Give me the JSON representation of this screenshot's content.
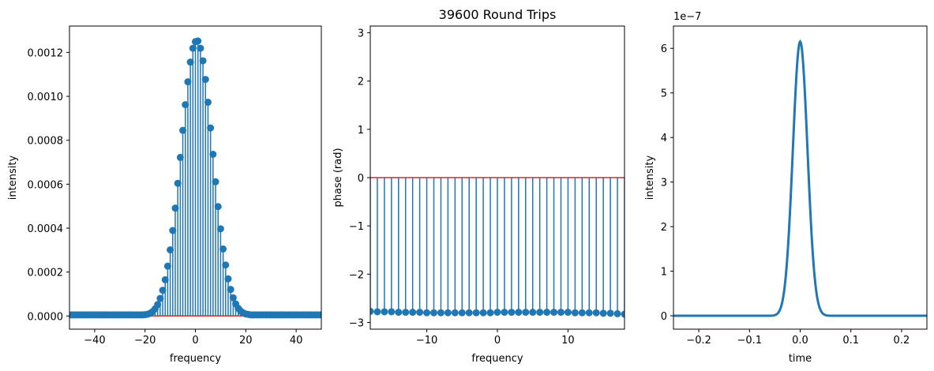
{
  "figure": {
    "suptitle": "39600 Round Trips"
  },
  "colors": {
    "series": "#1f77b4",
    "baseline": "#d62728",
    "axes": "#000000"
  },
  "chart_data": [
    {
      "type": "stem",
      "xlabel": "frequency",
      "ylabel": "intensity",
      "xlim": [
        -50,
        50
      ],
      "ylim": [
        -6e-05,
        0.00132
      ],
      "xticks": [
        -40,
        -20,
        0,
        20,
        40
      ],
      "xtick_labels": [
        "−40",
        "−20",
        "0",
        "20",
        "40"
      ],
      "yticks": [
        0,
        0.0002,
        0.0004,
        0.0006,
        0.0008,
        0.001,
        0.0012
      ],
      "ytick_labels": [
        "0.0000",
        "0.0002",
        "0.0004",
        "0.0006",
        "0.0008",
        "0.0010",
        "0.0012"
      ],
      "baseline": 0,
      "x": [
        -50,
        -49,
        -48,
        -47,
        -46,
        -45,
        -44,
        -43,
        -42,
        -41,
        -40,
        -39,
        -38,
        -37,
        -36,
        -35,
        -34,
        -33,
        -32,
        -31,
        -30,
        -29,
        -28,
        -27,
        -26,
        -25,
        -24,
        -23,
        -22,
        -21,
        -20,
        -19,
        -18,
        -17,
        -16,
        -15,
        -14,
        -13,
        -12,
        -11,
        -10,
        -9,
        -8,
        -7,
        -6,
        -5,
        -4,
        -3,
        -2,
        -1,
        0,
        1,
        2,
        3,
        4,
        5,
        6,
        7,
        8,
        9,
        10,
        11,
        12,
        13,
        14,
        15,
        16,
        17,
        18,
        19,
        20,
        21,
        22,
        23,
        24,
        25,
        26,
        27,
        28,
        29,
        30,
        31,
        32,
        33,
        34,
        35,
        36,
        37,
        38,
        39,
        40,
        41,
        42,
        43,
        44,
        45,
        46,
        47,
        48,
        49,
        50
      ],
      "y": [
        5e-06,
        5e-06,
        5e-06,
        5e-06,
        5e-06,
        5e-06,
        5e-06,
        5e-06,
        5e-06,
        5e-06,
        5e-06,
        5e-06,
        5e-06,
        5e-06,
        5e-06,
        5e-06,
        5e-06,
        5e-06,
        5e-06,
        5e-06,
        5e-06,
        5e-06,
        5e-06,
        5e-06,
        5e-06,
        5e-06,
        5e-06,
        5e-06,
        5e-06,
        5e-06,
        6e-06,
        8e-06,
        1.2e-05,
        2e-05,
        3.3e-05,
        5.2e-05,
        8e-05,
        0.000117,
        0.000165,
        0.000227,
        0.000301,
        0.000389,
        0.000491,
        0.000604,
        0.000722,
        0.000845,
        0.000962,
        0.001066,
        0.001156,
        0.001219,
        0.001249,
        0.001252,
        0.001219,
        0.001162,
        0.001077,
        0.000973,
        0.000856,
        0.000736,
        0.000611,
        0.000498,
        0.000397,
        0.000305,
        0.000232,
        0.000169,
        0.000121,
        8.3e-05,
        5.5e-05,
        3.5e-05,
        2.2e-05,
        1.4e-05,
        9e-06,
        7e-06,
        5e-06,
        5e-06,
        5e-06,
        5e-06,
        5e-06,
        5e-06,
        5e-06,
        5e-06,
        5e-06,
        5e-06,
        5e-06,
        5e-06,
        5e-06,
        5e-06,
        5e-06,
        5e-06,
        5e-06,
        5e-06,
        5e-06,
        5e-06,
        5e-06,
        5e-06,
        5e-06,
        5e-06,
        5e-06,
        5e-06,
        5e-06,
        5e-06,
        5e-06
      ]
    },
    {
      "type": "stem",
      "title": "39600 Round Trips",
      "xlabel": "frequency",
      "ylabel": "phase (rad)",
      "xlim": [
        -18,
        18
      ],
      "ylim": [
        -3.14,
        3.14
      ],
      "xticks": [
        -10,
        0,
        10
      ],
      "xtick_labels": [
        "−10",
        "0",
        "10"
      ],
      "yticks": [
        -3,
        -2,
        -1,
        0,
        1,
        2,
        3
      ],
      "ytick_labels": [
        "−3",
        "−2",
        "−1",
        "0",
        "1",
        "2",
        "3"
      ],
      "baseline": 0,
      "x": [
        -18,
        -17,
        -16,
        -15,
        -14,
        -13,
        -12,
        -11,
        -10,
        -9,
        -8,
        -7,
        -6,
        -5,
        -4,
        -3,
        -2,
        -1,
        0,
        1,
        2,
        3,
        4,
        5,
        6,
        7,
        8,
        9,
        10,
        11,
        12,
        13,
        14,
        15,
        16,
        17,
        18
      ],
      "y": [
        -2.77,
        -2.78,
        -2.78,
        -2.78,
        -2.79,
        -2.79,
        -2.79,
        -2.79,
        -2.8,
        -2.8,
        -2.8,
        -2.8,
        -2.8,
        -2.8,
        -2.8,
        -2.8,
        -2.8,
        -2.8,
        -2.79,
        -2.79,
        -2.79,
        -2.79,
        -2.79,
        -2.79,
        -2.79,
        -2.79,
        -2.79,
        -2.79,
        -2.79,
        -2.8,
        -2.8,
        -2.8,
        -2.8,
        -2.81,
        -2.81,
        -2.82,
        -2.83
      ]
    },
    {
      "type": "line",
      "xlabel": "time",
      "ylabel": "intensity",
      "offset_text": "1e−7",
      "xlim": [
        -0.25,
        0.25
      ],
      "ylim": [
        -0.3,
        6.5
      ],
      "y_scale_factor": 1e-07,
      "xticks": [
        -0.2,
        -0.1,
        0,
        0.1,
        0.2
      ],
      "xtick_labels": [
        "−0.2",
        "−0.1",
        "0.0",
        "0.1",
        "0.2"
      ],
      "yticks": [
        0,
        1,
        2,
        3,
        4,
        5,
        6
      ],
      "ytick_labels": [
        "0",
        "1",
        "2",
        "3",
        "4",
        "5",
        "6"
      ],
      "pulse": {
        "center": 0.0,
        "peak": 6.15,
        "fwhm": 0.034,
        "points": 401
      }
    }
  ]
}
